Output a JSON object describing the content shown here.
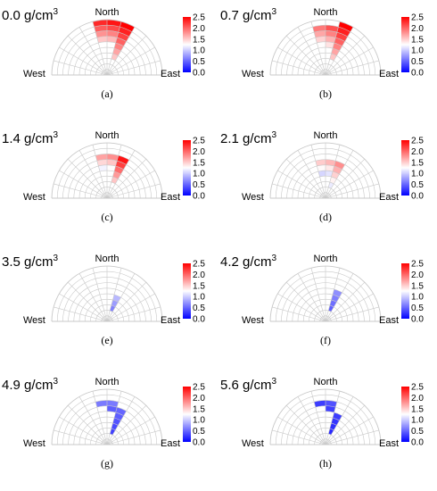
{
  "chart_data": {
    "type": "polar-heatmap",
    "direction_labels": {
      "north": "North",
      "west": "West",
      "east": "East"
    },
    "colorbar": {
      "ticks": [
        "0.0",
        "0.5",
        "1.0",
        "1.5",
        "2.0",
        "2.5"
      ],
      "range": [
        0,
        2.5
      ],
      "colors": [
        "#0000ff",
        "#ffffff",
        "#ff0000"
      ]
    },
    "sector_angles_deg": [
      -90,
      -75,
      -60,
      -45,
      -30,
      -15,
      0,
      15,
      30,
      45,
      60,
      75,
      90
    ],
    "rings": 10,
    "panels": [
      {
        "title_value": "0.0 g/cm",
        "title_sup": "3",
        "caption": "(a)",
        "cells": [
          {
            "sector": 5,
            "r0": 6,
            "r1": 10,
            "v": 2.3
          },
          {
            "sector": 6,
            "r0": 6,
            "r1": 10,
            "v": 2.4
          },
          {
            "sector": 7,
            "r0": 3,
            "r1": 10,
            "v": 2.5
          }
        ]
      },
      {
        "title_value": "0.7 g/cm",
        "title_sup": "3",
        "caption": "(b)",
        "cells": [
          {
            "sector": 5,
            "r0": 5,
            "r1": 9,
            "v": 1.9
          },
          {
            "sector": 6,
            "r0": 5,
            "r1": 9,
            "v": 2.1
          },
          {
            "sector": 7,
            "r0": 3,
            "r1": 10,
            "v": 2.5
          }
        ]
      },
      {
        "title_value": "1.4 g/cm",
        "title_sup": "3",
        "caption": "(c)",
        "cells": [
          {
            "sector": 5,
            "r0": 5,
            "r1": 8,
            "v": 1.7
          },
          {
            "sector": 6,
            "r0": 5,
            "r1": 8,
            "v": 1.8
          },
          {
            "sector": 7,
            "r0": 3,
            "r1": 8,
            "v": 2.4
          }
        ]
      },
      {
        "title_value": "2.1 g/cm",
        "title_sup": "3",
        "caption": "(d)",
        "cells": [
          {
            "sector": 5,
            "r0": 4,
            "r1": 7,
            "v": 1.5
          },
          {
            "sector": 6,
            "r0": 4,
            "r1": 7,
            "v": 1.6
          },
          {
            "sector": 7,
            "r0": 2,
            "r1": 7,
            "v": 1.8
          }
        ]
      },
      {
        "title_value": "3.5 g/cm",
        "title_sup": "3",
        "caption": "(e)",
        "cells": [
          {
            "sector": 7,
            "r0": 2,
            "r1": 5,
            "v": 0.9
          }
        ]
      },
      {
        "title_value": "4.2 g/cm",
        "title_sup": "3",
        "caption": "(f)",
        "cells": [
          {
            "sector": 7,
            "r0": 2,
            "r1": 6,
            "v": 0.7
          }
        ]
      },
      {
        "title_value": "4.9 g/cm",
        "title_sup": "3",
        "caption": "(g)",
        "cells": [
          {
            "sector": 5,
            "r0": 7,
            "r1": 8,
            "v": 0.6
          },
          {
            "sector": 6,
            "r0": 6,
            "r1": 8,
            "v": 0.6
          },
          {
            "sector": 7,
            "r0": 2,
            "r1": 7,
            "v": 0.5
          }
        ]
      },
      {
        "title_value": "5.6 g/cm",
        "title_sup": "3",
        "caption": "(h)",
        "cells": [
          {
            "sector": 5,
            "r0": 7,
            "r1": 8,
            "v": 0.3
          },
          {
            "sector": 6,
            "r0": 6,
            "r1": 8,
            "v": 0.4
          },
          {
            "sector": 7,
            "r0": 2,
            "r1": 6,
            "v": 0.3
          }
        ]
      }
    ]
  }
}
